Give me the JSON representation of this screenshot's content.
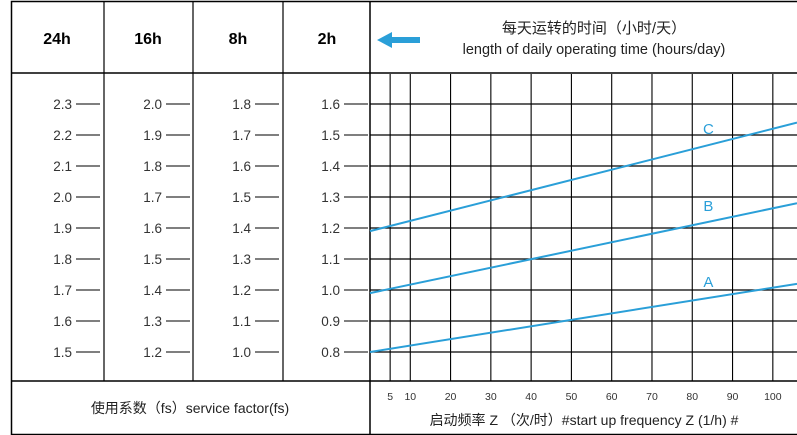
{
  "table": {
    "header_columns": [
      "24h",
      "16h",
      "8h",
      "2h"
    ],
    "daily_time_title_cn": "每天运转的时间（小时/天）",
    "daily_time_title_en": "length of daily operating time (hours/day)",
    "footer_left_label": "使用系数（fs）service factor(fs)",
    "footer_right_label": "启动频率 Z （次/时）#start up frequency Z (1/h) #"
  },
  "colors": {
    "line": "#2a9fd8",
    "arrow": "#2a9fd8",
    "grid": "#000000",
    "text": "#333333"
  },
  "chart_data": {
    "type": "line",
    "service_factor_columns": [
      {
        "hours": "24h",
        "values": [
          "2.3",
          "2.2",
          "2.1",
          "2.0",
          "1.9",
          "1.8",
          "1.7",
          "1.6",
          "1.5"
        ]
      },
      {
        "hours": "16h",
        "values": [
          "2.0",
          "1.9",
          "1.8",
          "1.7",
          "1.6",
          "1.5",
          "1.4",
          "1.3",
          "1.2"
        ]
      },
      {
        "hours": "8h",
        "values": [
          "1.8",
          "1.7",
          "1.6",
          "1.5",
          "1.4",
          "1.3",
          "1.2",
          "1.1",
          "1.0"
        ]
      },
      {
        "hours": "2h",
        "values": [
          "1.6",
          "1.5",
          "1.4",
          "1.3",
          "1.2",
          "1.1",
          "1.0",
          "0.9",
          "0.8"
        ]
      }
    ],
    "x_ticks": [
      "5",
      "10",
      "20",
      "30",
      "40",
      "50",
      "60",
      "70",
      "80",
      "90",
      "100"
    ],
    "x_tick_values": [
      5,
      10,
      20,
      30,
      40,
      50,
      60,
      70,
      80,
      90,
      100
    ],
    "xlim": [
      0,
      106
    ],
    "ylim": [
      0.8,
      1.6
    ],
    "y_ticks": [
      1.6,
      1.5,
      1.4,
      1.3,
      1.2,
      1.1,
      1.0,
      0.9,
      0.8
    ],
    "series": [
      {
        "name": "A",
        "x": [
          0,
          106
        ],
        "y": [
          0.8,
          1.02
        ]
      },
      {
        "name": "B",
        "x": [
          0,
          106
        ],
        "y": [
          0.99,
          1.28
        ]
      },
      {
        "name": "C",
        "x": [
          0,
          106
        ],
        "y": [
          1.19,
          1.54
        ]
      }
    ]
  }
}
